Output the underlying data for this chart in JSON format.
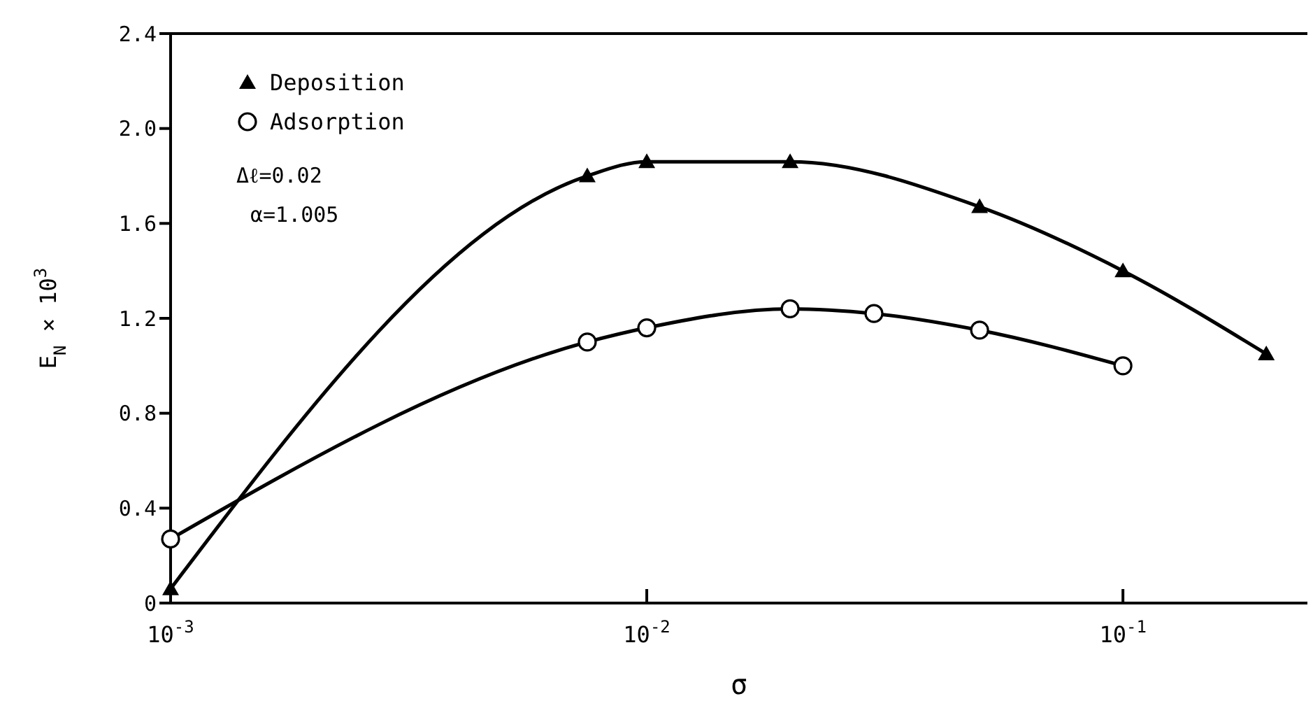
{
  "chart_data": {
    "type": "line",
    "xlabel": "σ",
    "ylabel": "E$_{N}$ × 10$^{3}$",
    "log": "x",
    "xlim": [
      0.001,
      0.244
    ],
    "ylim": [
      0,
      2.4
    ],
    "xticks": [
      {
        "value": 0.001,
        "label": "10$^{-3}$"
      },
      {
        "value": 0.01,
        "label": "10$^{-2}$"
      },
      {
        "value": 0.1,
        "label": "10$^{-1}$"
      }
    ],
    "yticks": [
      0,
      0.4,
      0.8,
      1.2,
      1.6,
      {
        "value": 2,
        "label": "2.0"
      },
      2.4
    ],
    "legend": "top left",
    "grid": false,
    "line_style": "solid",
    "annotations": [
      "Δℓ=0.02",
      "α=1.005"
    ],
    "series": [
      {
        "name": "Deposition",
        "color": "#000000",
        "marker": "triangle",
        "x": [
          0.001,
          0.0075,
          0.01,
          0.02,
          0.05,
          0.1,
          0.2
        ],
        "values": [
          0.06,
          1.8,
          1.86,
          1.86,
          1.67,
          1.4,
          1.05
        ]
      },
      {
        "name": "Adsorption",
        "color": "#000000",
        "marker": "circle",
        "x": [
          0.001,
          0.0075,
          0.01,
          0.02,
          0.03,
          0.05,
          0.1
        ],
        "values": [
          0.27,
          1.1,
          1.16,
          1.24,
          1.22,
          1.15,
          1.0
        ]
      }
    ]
  }
}
